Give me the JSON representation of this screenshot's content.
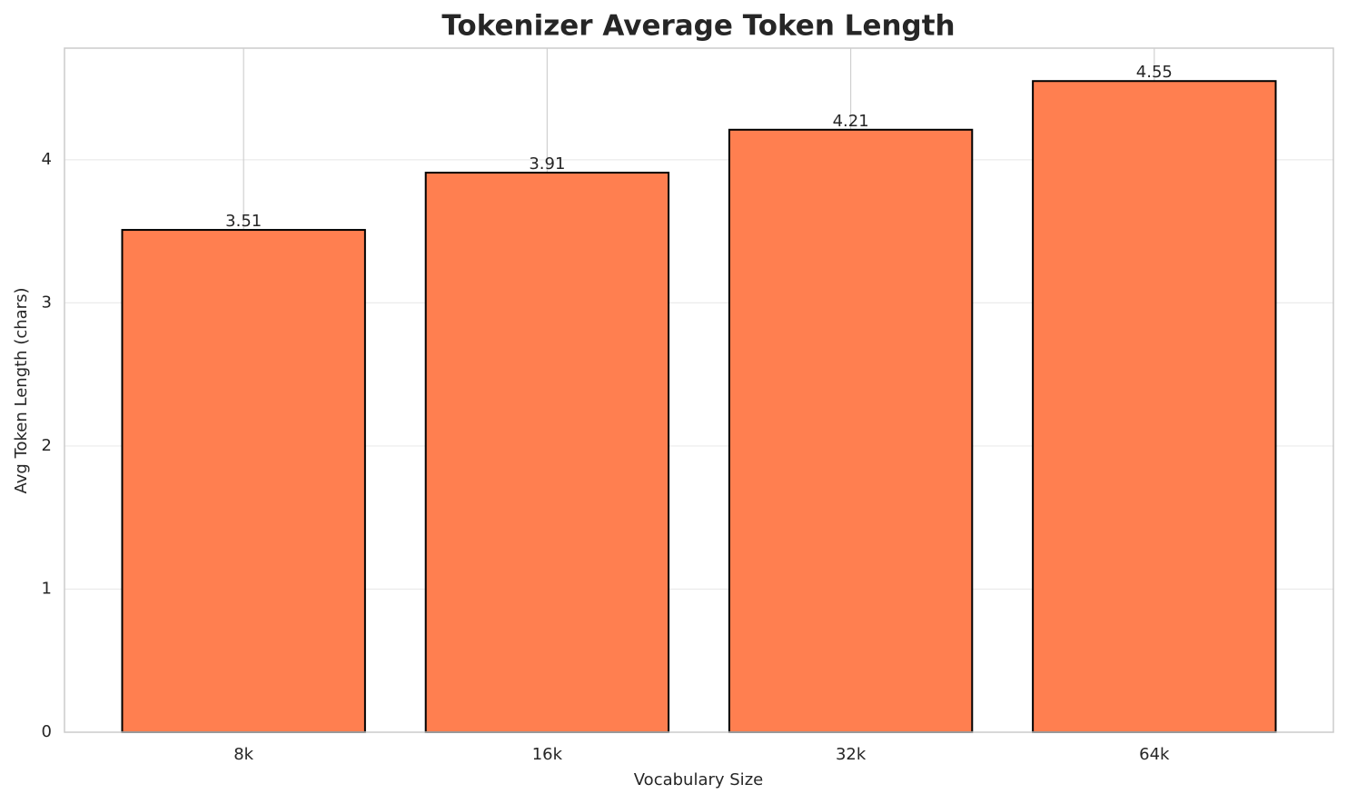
{
  "chart_data": {
    "type": "bar",
    "title": "Tokenizer Average Token Length",
    "x_label": "Vocabulary Size",
    "y_label": "Avg Token Length (chars)",
    "categories": [
      "8k",
      "16k",
      "32k",
      "64k"
    ],
    "values": [
      3.51,
      3.91,
      4.21,
      4.55
    ],
    "color": "#ff7f50",
    "edgecolor": "#000000",
    "ylim": [
      0,
      4.78
    ],
    "yticks": [
      0,
      1,
      2,
      3,
      4
    ],
    "grid": true
  }
}
